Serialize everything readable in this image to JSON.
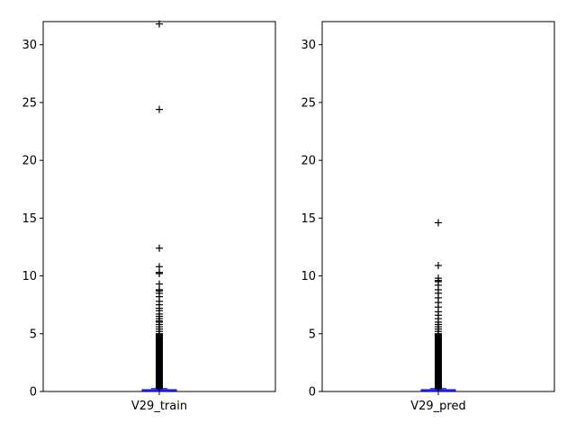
{
  "chart_data": [
    {
      "type": "box",
      "categories": [
        "V29_train"
      ],
      "ylim": [
        0,
        32
      ],
      "yticks": [
        0,
        5,
        10,
        15,
        20,
        25,
        30
      ],
      "box": {
        "q1": 0.03,
        "median": 0.07,
        "q3": 0.12,
        "whisker_low": 0.0,
        "whisker_high": 0.25
      },
      "outliers": [
        31.8,
        24.4,
        12.4,
        10.8,
        10.3,
        10.2,
        9.3,
        8.8,
        8.7,
        8.5,
        8.2,
        7.8,
        7.5,
        7.2,
        7.0,
        6.7,
        6.5,
        6.3,
        6.1,
        6.0,
        5.8,
        5.6,
        5.4,
        5.2,
        5.0,
        4.8,
        4.6,
        4.4,
        4.2,
        4.0,
        3.8,
        3.6,
        3.4,
        3.2,
        3.0,
        2.8,
        2.6,
        2.4,
        2.2,
        2.0,
        1.8,
        1.6,
        1.4,
        1.2,
        1.0,
        0.8,
        0.6,
        0.4,
        0.3
      ]
    },
    {
      "type": "box",
      "categories": [
        "V29_pred"
      ],
      "ylim": [
        0,
        32
      ],
      "yticks": [
        0,
        5,
        10,
        15,
        20,
        25,
        30
      ],
      "box": {
        "q1": 0.03,
        "median": 0.07,
        "q3": 0.12,
        "whisker_low": 0.0,
        "whisker_high": 0.25
      },
      "outliers": [
        14.6,
        10.9,
        9.8,
        9.6,
        9.5,
        9.2,
        8.8,
        8.5,
        8.1,
        7.7,
        7.3,
        6.9,
        6.6,
        6.3,
        6.0,
        5.8,
        5.6,
        5.4,
        5.2,
        5.0,
        4.8,
        4.6,
        4.4,
        4.2,
        4.0,
        3.8,
        3.6,
        3.4,
        3.2,
        3.0,
        2.8,
        2.6,
        2.4,
        2.2,
        2.0,
        1.8,
        1.6,
        1.4,
        1.2,
        1.0,
        0.8,
        0.6,
        0.4,
        0.3
      ]
    }
  ],
  "colors": {
    "box": "#0000ff",
    "median": "#0000ff",
    "outlier": "#000000",
    "axes": "#000000"
  }
}
